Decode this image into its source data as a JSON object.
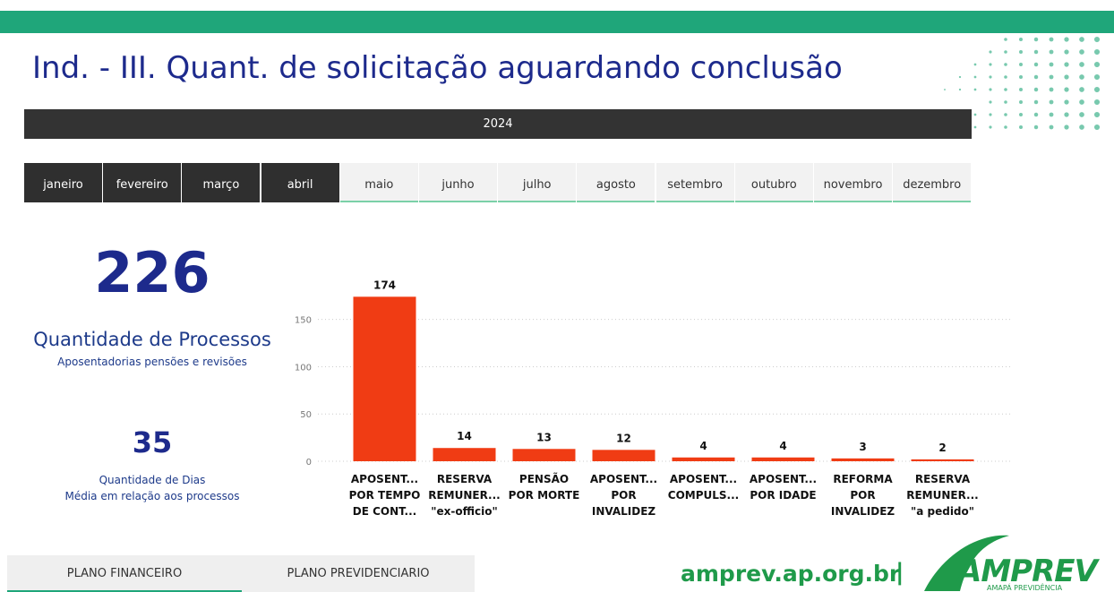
{
  "header": {
    "title": "Ind. - III. Quant. de solicitação aguardando conclusão"
  },
  "year": "2024",
  "months": [
    {
      "label": "janeiro",
      "selected": true
    },
    {
      "label": "fevereiro",
      "selected": true
    },
    {
      "label": "março",
      "selected": true
    },
    {
      "label": "abril",
      "selected": true
    },
    {
      "label": "maio",
      "selected": false
    },
    {
      "label": "junho",
      "selected": false
    },
    {
      "label": "julho",
      "selected": false
    },
    {
      "label": "agosto",
      "selected": false
    },
    {
      "label": "setembro",
      "selected": false
    },
    {
      "label": "outubro",
      "selected": false
    },
    {
      "label": "novembro",
      "selected": false
    },
    {
      "label": "dezembro",
      "selected": false
    }
  ],
  "kpi_processes": {
    "value": 226,
    "label": "Quantidade de Processos",
    "sublabel": "Aposentadorias pensões e revisões"
  },
  "kpi_days": {
    "value": 35,
    "label": "Quantidade de Dias",
    "sublabel": "Média em relação aos processos"
  },
  "chart_data": {
    "type": "bar",
    "categories": [
      [
        "APOSENT...",
        "POR TEMPO",
        "DE CONT..."
      ],
      [
        "RESERVA",
        "REMUNER...",
        "\"ex-officio\""
      ],
      [
        "PENSÃO",
        "POR MORTE"
      ],
      [
        "APOSENT...",
        "POR",
        "INVALIDEZ"
      ],
      [
        "APOSENT...",
        "COMPULS..."
      ],
      [
        "APOSENT...",
        "POR IDADE"
      ],
      [
        "REFORMA",
        "POR",
        "INVALIDEZ"
      ],
      [
        "RESERVA",
        "REMUNER...",
        "\"a pedido\""
      ]
    ],
    "values": [
      174,
      14,
      13,
      12,
      4,
      4,
      3,
      2
    ],
    "color": "#f03c14",
    "ylim": [
      0,
      180
    ],
    "yticks": [
      0,
      50,
      100,
      150
    ],
    "grid": true
  },
  "tabs": [
    "PLANO FINANCEIRO",
    "PLANO PREVIDENCIARIO"
  ],
  "footer": {
    "website": "amprev.ap.org.br",
    "separator": "|",
    "logo": "AMPREV",
    "logo_sub": "AMAPÁ PREVIDÊNCIA"
  }
}
